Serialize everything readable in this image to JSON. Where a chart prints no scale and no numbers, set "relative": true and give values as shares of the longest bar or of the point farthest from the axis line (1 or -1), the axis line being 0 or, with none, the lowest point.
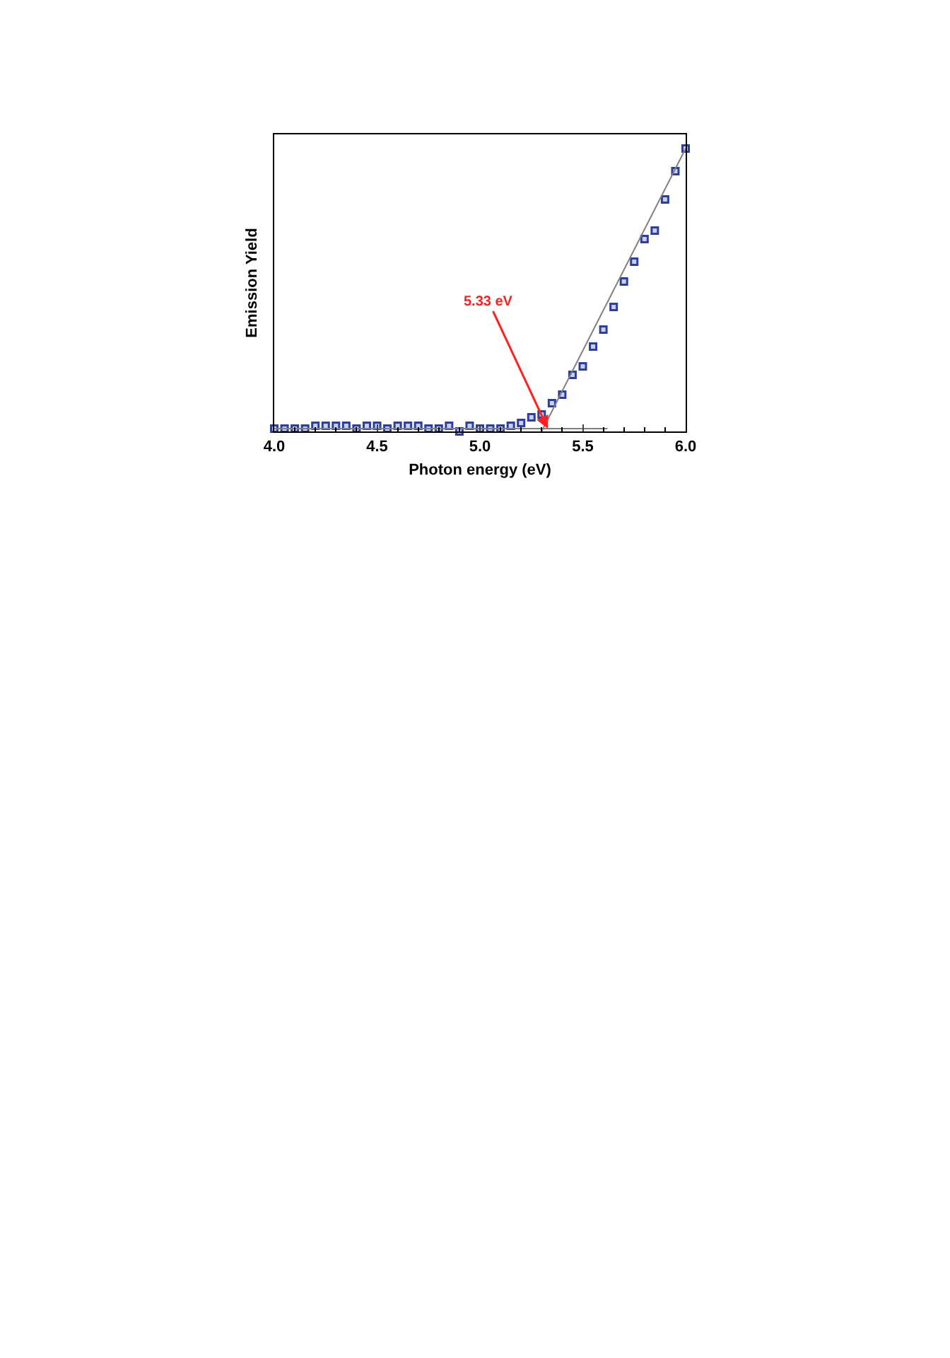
{
  "chart_data": {
    "type": "scatter",
    "xlabel": "Photon energy (eV)",
    "ylabel": "Emission Yield",
    "relative": true,
    "xlim": [
      4.0,
      6.0
    ],
    "xticks": [
      {
        "value": 4.0,
        "label": "4.0"
      },
      {
        "value": 4.5,
        "label": "4.5"
      },
      {
        "value": 5.0,
        "label": "5.0"
      },
      {
        "value": 5.5,
        "label": "5.5"
      },
      {
        "value": 6.0,
        "label": "6.0"
      }
    ],
    "annotations": [
      {
        "text": "5.33 eV",
        "x": 5.33,
        "y": 0.01
      }
    ],
    "series": [
      {
        "marker": "square",
        "color": "#2c3f9e",
        "x": [
          4.0,
          4.05,
          4.1,
          4.15,
          4.2,
          4.25,
          4.3,
          4.35,
          4.4,
          4.45,
          4.5,
          4.55,
          4.6,
          4.65,
          4.7,
          4.75,
          4.8,
          4.85,
          4.9,
          4.95,
          5.0,
          5.05,
          5.1,
          5.15,
          5.2,
          5.25,
          5.3,
          5.35,
          5.4,
          5.45,
          5.5,
          5.55,
          5.6,
          5.65,
          5.7,
          5.75,
          5.8,
          5.85,
          5.9,
          5.95,
          6.0
        ],
        "values": [
          0.01,
          0.01,
          0.01,
          0.01,
          0.02,
          0.02,
          0.02,
          0.02,
          0.01,
          0.02,
          0.02,
          0.01,
          0.02,
          0.02,
          0.02,
          0.01,
          0.01,
          0.02,
          0.0,
          0.02,
          0.01,
          0.01,
          0.01,
          0.02,
          0.03,
          0.05,
          0.06,
          0.1,
          0.13,
          0.2,
          0.23,
          0.3,
          0.36,
          0.44,
          0.53,
          0.6,
          0.68,
          0.71,
          0.82,
          0.92,
          1.0
        ]
      },
      {
        "type": "line",
        "color": "#808080",
        "x": [
          4.0,
          5.62
        ],
        "values": [
          0.01,
          0.01
        ]
      },
      {
        "type": "line",
        "color": "#808080",
        "x": [
          5.3,
          6.0
        ],
        "values": [
          0.0,
          1.0
        ]
      }
    ]
  }
}
